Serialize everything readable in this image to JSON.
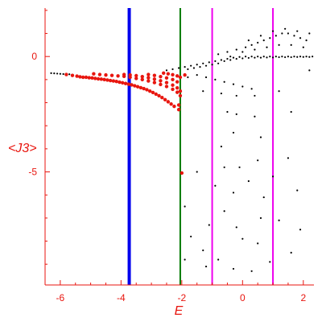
{
  "chart_data": {
    "type": "scatter",
    "title": "",
    "xlabel": "E",
    "ylabel": "<J3>",
    "xlim": [
      -6.5,
      2.35
    ],
    "ylim": [
      -9.9,
      2.1
    ],
    "x_ticks": [
      -6,
      -4,
      -2,
      0,
      2
    ],
    "x_tick_labels": [
      "-6",
      "-4",
      "-2",
      "0",
      "2"
    ],
    "y_ticks": [
      0,
      -5
    ],
    "y_tick_labels": [
      "0",
      "-5"
    ],
    "axis_color": "#e8160f",
    "vertical_lines": [
      {
        "x": -3.73,
        "color": "#0000ee",
        "width": "thick"
      },
      {
        "x": -2.05,
        "color": "#007a00",
        "width": "thin"
      },
      {
        "x": -1.0,
        "color": "#ee00ee",
        "width": "thin"
      },
      {
        "x": 1.0,
        "color": "#ee00ee",
        "width": "thin"
      }
    ],
    "series": [
      {
        "color": "#e8160f",
        "points": [
          [
            -5.8,
            -0.78
          ],
          [
            -5.6,
            -0.82
          ],
          [
            -5.45,
            -0.85
          ],
          [
            -5.35,
            -0.88
          ],
          [
            -5.25,
            -0.9
          ],
          [
            -5.15,
            -0.9
          ],
          [
            -5.05,
            -0.92
          ],
          [
            -4.95,
            -0.93
          ],
          [
            -4.85,
            -0.95
          ],
          [
            -4.75,
            -0.97
          ],
          [
            -4.65,
            -0.98
          ],
          [
            -4.55,
            -1.0
          ],
          [
            -4.45,
            -1.02
          ],
          [
            -4.35,
            -1.04
          ],
          [
            -4.25,
            -1.06
          ],
          [
            -4.15,
            -1.08
          ],
          [
            -4.05,
            -1.11
          ],
          [
            -3.95,
            -1.14
          ],
          [
            -3.85,
            -1.17
          ],
          [
            -3.75,
            -1.2
          ],
          [
            -3.65,
            -1.23
          ],
          [
            -3.55,
            -1.27
          ],
          [
            -3.45,
            -1.31
          ],
          [
            -3.35,
            -1.35
          ],
          [
            -3.25,
            -1.39
          ],
          [
            -3.15,
            -1.44
          ],
          [
            -3.05,
            -1.5
          ],
          [
            -2.95,
            -1.56
          ],
          [
            -2.85,
            -1.63
          ],
          [
            -2.75,
            -1.7
          ],
          [
            -2.65,
            -1.78
          ],
          [
            -2.55,
            -1.87
          ],
          [
            -2.45,
            -1.96
          ],
          [
            -2.35,
            -2.06
          ],
          [
            -2.25,
            -2.16
          ],
          [
            -4.9,
            -0.75
          ],
          [
            -4.7,
            -0.78
          ],
          [
            -4.5,
            -0.8
          ],
          [
            -4.3,
            -0.82
          ],
          [
            -4.1,
            -0.84
          ],
          [
            -3.9,
            -0.86
          ],
          [
            -3.7,
            -0.9
          ],
          [
            -3.5,
            -0.95
          ],
          [
            -3.3,
            -1.0
          ],
          [
            -3.1,
            -1.06
          ],
          [
            -2.9,
            -1.13
          ],
          [
            -2.7,
            -1.21
          ],
          [
            -2.5,
            -1.3
          ],
          [
            -2.3,
            -1.42
          ],
          [
            -2.15,
            -1.55
          ],
          [
            -3.9,
            -0.78
          ],
          [
            -3.7,
            -0.8
          ],
          [
            -3.5,
            -0.83
          ],
          [
            -3.3,
            -0.87
          ],
          [
            -3.1,
            -0.92
          ],
          [
            -2.9,
            -0.98
          ],
          [
            -2.7,
            -1.05
          ],
          [
            -2.5,
            -1.13
          ],
          [
            -2.3,
            -1.24
          ],
          [
            -2.15,
            -1.36
          ],
          [
            -3.1,
            -0.78
          ],
          [
            -2.9,
            -0.82
          ],
          [
            -2.7,
            -0.87
          ],
          [
            -2.5,
            -0.93
          ],
          [
            -2.3,
            -1.0
          ],
          [
            -2.15,
            -1.1
          ],
          [
            -2.6,
            -0.72
          ],
          [
            -2.45,
            -0.75
          ],
          [
            -2.3,
            -0.79
          ],
          [
            -2.15,
            -0.84
          ],
          [
            -2.05,
            -0.9
          ],
          [
            -2.05,
            -1.5
          ],
          [
            -2.05,
            -1.7
          ],
          [
            -2.1,
            -2.1
          ],
          [
            -2.1,
            -2.3
          ],
          [
            -2.0,
            -5.05
          ],
          [
            -1.9,
            -0.8
          ]
        ]
      },
      {
        "color": "#000000",
        "points": [
          [
            -6.3,
            -0.72
          ],
          [
            -6.2,
            -0.73
          ],
          [
            -6.1,
            -0.74
          ],
          [
            -6.0,
            -0.75
          ],
          [
            -5.9,
            -0.76
          ],
          [
            -5.7,
            -0.77
          ],
          [
            -2.5,
            -0.6
          ],
          [
            -2.3,
            -0.55
          ],
          [
            -2.1,
            -0.5
          ],
          [
            -1.9,
            -0.45
          ],
          [
            -1.7,
            -0.4
          ],
          [
            -1.5,
            -0.35
          ],
          [
            -1.3,
            -0.3
          ],
          [
            -1.1,
            -0.25
          ],
          [
            -0.9,
            -0.2
          ],
          [
            -0.7,
            -0.15
          ],
          [
            -0.5,
            -0.1
          ],
          [
            -0.3,
            -0.05
          ],
          [
            -0.1,
            -0.02
          ],
          [
            0.1,
            0.0
          ],
          [
            0.3,
            0.0
          ],
          [
            0.5,
            0.0
          ],
          [
            0.7,
            0.0
          ],
          [
            0.9,
            0.0
          ],
          [
            1.1,
            0.0
          ],
          [
            1.3,
            0.0
          ],
          [
            1.5,
            0.0
          ],
          [
            1.7,
            0.0
          ],
          [
            1.9,
            0.0
          ],
          [
            2.1,
            0.0
          ],
          [
            2.3,
            0.0
          ],
          [
            -1.8,
            -0.55
          ],
          [
            -1.6,
            -0.5
          ],
          [
            -1.4,
            -0.45
          ],
          [
            -1.2,
            -0.4
          ],
          [
            -1.0,
            -0.35
          ],
          [
            -0.8,
            -0.3
          ],
          [
            -0.6,
            -0.2
          ],
          [
            -0.4,
            -0.15
          ],
          [
            -0.2,
            -0.1
          ],
          [
            0.0,
            -0.08
          ],
          [
            0.2,
            -0.06
          ],
          [
            0.4,
            -0.05
          ],
          [
            0.6,
            -0.05
          ],
          [
            0.8,
            -0.04
          ],
          [
            1.0,
            -0.04
          ],
          [
            1.2,
            -0.03
          ],
          [
            1.4,
            -0.03
          ],
          [
            1.6,
            -0.03
          ],
          [
            1.8,
            -0.02
          ],
          [
            2.0,
            -0.02
          ],
          [
            2.2,
            -0.02
          ],
          [
            -0.8,
            0.1
          ],
          [
            -0.5,
            0.2
          ],
          [
            -0.2,
            0.3
          ],
          [
            0.1,
            0.4
          ],
          [
            0.3,
            0.5
          ],
          [
            0.5,
            0.6
          ],
          [
            0.7,
            0.7
          ],
          [
            0.9,
            0.8
          ],
          [
            1.1,
            0.9
          ],
          [
            1.3,
            1.0
          ],
          [
            1.5,
            1.0
          ],
          [
            1.7,
            0.9
          ],
          [
            1.9,
            0.8
          ],
          [
            2.1,
            0.7
          ],
          [
            0.2,
            0.7
          ],
          [
            0.6,
            0.9
          ],
          [
            1.0,
            1.1
          ],
          [
            1.4,
            1.2
          ],
          [
            1.8,
            1.1
          ],
          [
            2.2,
            1.0
          ],
          [
            0.4,
            0.3
          ],
          [
            0.8,
            0.4
          ],
          [
            1.2,
            0.5
          ],
          [
            1.6,
            0.5
          ],
          [
            2.0,
            0.4
          ],
          [
            0.0,
            0.2
          ],
          [
            -0.4,
            0.0
          ],
          [
            -1.5,
            -0.8
          ],
          [
            -1.2,
            -0.9
          ],
          [
            -0.9,
            -1.0
          ],
          [
            -0.6,
            -1.1
          ],
          [
            -0.3,
            -1.2
          ],
          [
            0.0,
            -1.3
          ],
          [
            0.3,
            -1.4
          ],
          [
            -1.8,
            -0.9
          ],
          [
            -1.3,
            -1.5
          ],
          [
            -0.7,
            -1.6
          ],
          [
            -0.2,
            -1.7
          ],
          [
            0.4,
            -1.7
          ],
          [
            1.2,
            -1.5
          ],
          [
            2.2,
            -0.6
          ],
          [
            -0.5,
            -2.4
          ],
          [
            -0.2,
            -2.5
          ],
          [
            0.4,
            -2.6
          ],
          [
            1.6,
            -2.4
          ],
          [
            -0.3,
            -3.3
          ],
          [
            0.6,
            -3.5
          ],
          [
            -0.7,
            -3.9
          ],
          [
            0.5,
            -4.5
          ],
          [
            1.5,
            -4.4
          ],
          [
            -0.6,
            -4.8
          ],
          [
            -0.1,
            -4.8
          ],
          [
            -1.5,
            -5.0
          ],
          [
            1.0,
            -5.2
          ],
          [
            0.2,
            -5.4
          ],
          [
            -0.9,
            -5.6
          ],
          [
            1.8,
            -5.8
          ],
          [
            -0.3,
            -5.9
          ],
          [
            0.7,
            -6.1
          ],
          [
            -1.9,
            -6.5
          ],
          [
            -0.6,
            -6.7
          ],
          [
            0.6,
            -7.0
          ],
          [
            1.2,
            -7.1
          ],
          [
            -1.1,
            -7.3
          ],
          [
            -0.2,
            -7.4
          ],
          [
            1.9,
            -7.5
          ],
          [
            -1.7,
            -7.8
          ],
          [
            0.0,
            -7.9
          ],
          [
            0.5,
            -8.1
          ],
          [
            -1.3,
            -8.4
          ],
          [
            1.6,
            -8.5
          ],
          [
            -1.9,
            -8.8
          ],
          [
            -0.8,
            -8.8
          ],
          [
            0.9,
            -8.9
          ],
          [
            -1.2,
            -9.1
          ],
          [
            -0.3,
            -9.2
          ],
          [
            0.3,
            -9.3
          ]
        ]
      }
    ],
    "grid": false,
    "legend": "none"
  }
}
